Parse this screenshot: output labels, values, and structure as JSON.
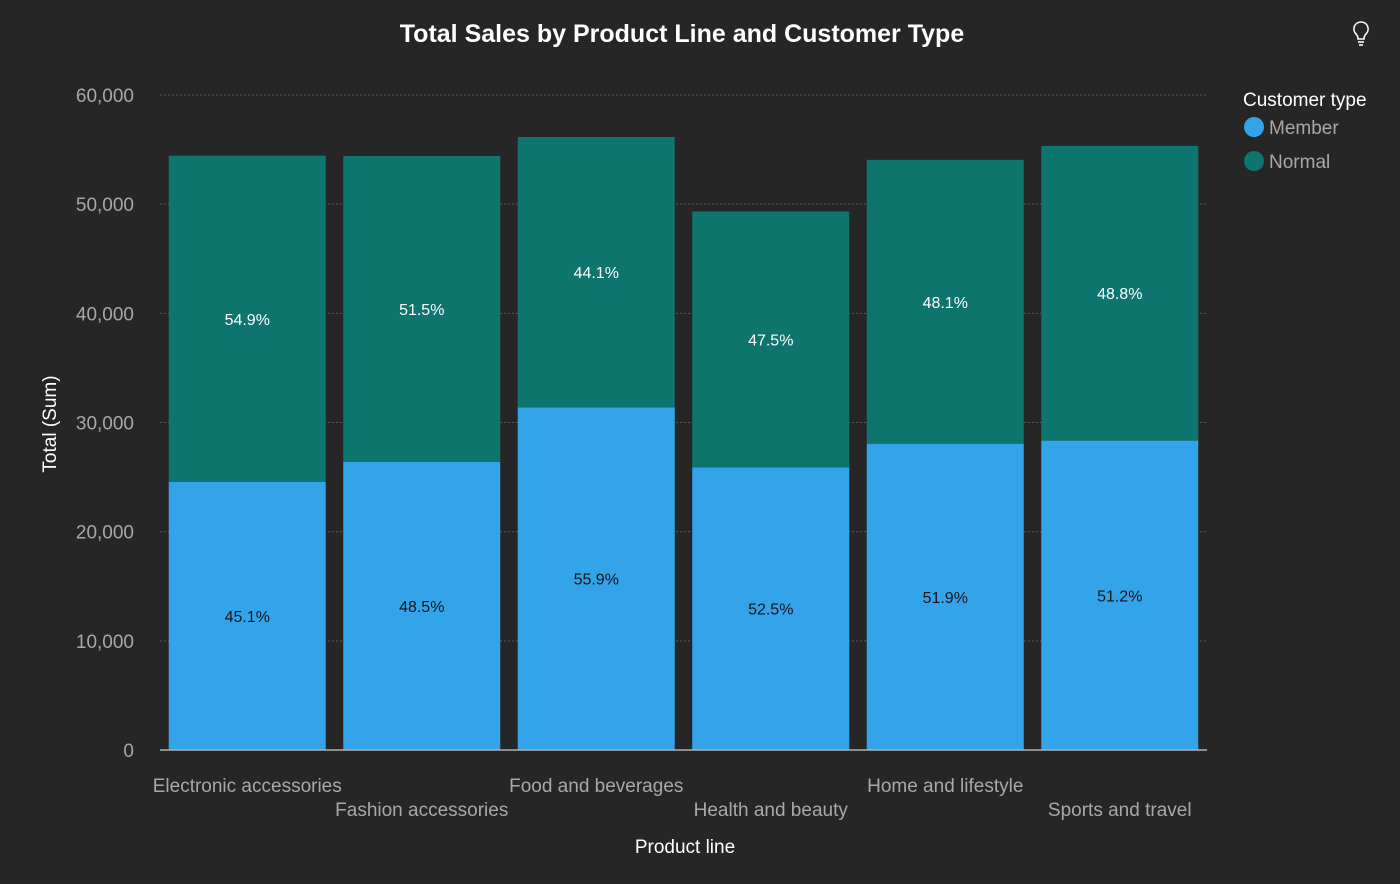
{
  "chart_data": {
    "type": "bar",
    "stacked": true,
    "title": "Total Sales by Product Line and Customer Type",
    "xlabel": "Product line",
    "ylabel": "Total (Sum)",
    "ylim": [
      0,
      60000
    ],
    "yticks": [
      0,
      10000,
      20000,
      30000,
      40000,
      50000,
      60000
    ],
    "ytick_labels": [
      "0",
      "10,000",
      "20,000",
      "30,000",
      "40,000",
      "50,000",
      "60,000"
    ],
    "grid": true,
    "categories": [
      "Electronic accessories",
      "Fashion accessories",
      "Food and beverages",
      "Health and beauty",
      "Home and lifestyle",
      "Sports and travel"
    ],
    "series": [
      {
        "name": "Member",
        "color": "#33a3ea",
        "label_color": "#161616",
        "values": [
          24550,
          26390,
          31380,
          25900,
          28060,
          28340
        ],
        "data_labels": [
          "45.1%",
          "48.5%",
          "55.9%",
          "52.5%",
          "51.9%",
          "51.2%"
        ]
      },
      {
        "name": "Normal",
        "color": "#0d756d",
        "label_color": "#ffffff",
        "values": [
          29890,
          28030,
          24770,
          23430,
          26000,
          27000
        ],
        "data_labels": [
          "54.9%",
          "51.5%",
          "44.1%",
          "47.5%",
          "48.1%",
          "48.8%"
        ]
      }
    ],
    "legend": {
      "title": "Customer type",
      "position": "top-right"
    }
  },
  "icons": {
    "insight": "lightbulb-icon"
  }
}
